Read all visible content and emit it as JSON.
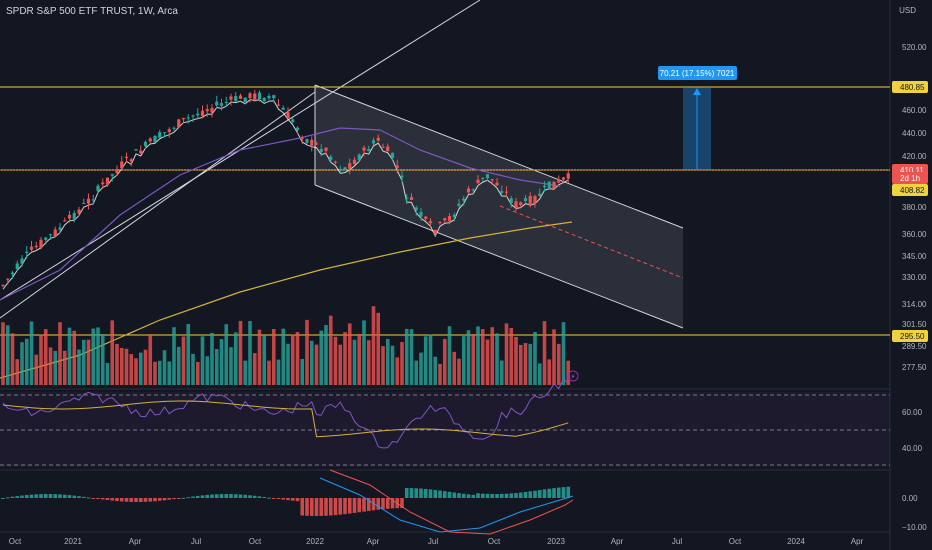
{
  "header": {
    "title": "SPDR S&P 500 ETF TRUST, 1W, Arca",
    "currency": "USD"
  },
  "colors": {
    "up": "#26a69a",
    "down": "#ef5350",
    "ma_short": "#ffffff",
    "ma_mid": "#7e57c2",
    "ma_long": "#d4b13a",
    "level": "#f0d23c",
    "channel_fill": "#6b6e78",
    "measure": "#2196f3"
  },
  "price_axis": {
    "ticks": [
      "520.00",
      "480.00",
      "460.00",
      "440.00",
      "420.00",
      "380.00",
      "360.00",
      "345.00",
      "330.00",
      "314.00",
      "301.50",
      "289.50",
      "277.50"
    ],
    "labels": [
      {
        "text": "480.85",
        "style": "yellow"
      },
      {
        "text": "410.11",
        "style": "red"
      },
      {
        "text": "2d 1h",
        "style": "red"
      },
      {
        "text": "408.82",
        "style": "yellow"
      },
      {
        "text": "295.50",
        "style": "yellow"
      }
    ]
  },
  "measure_label": "70.21 (17.15%) 7021",
  "rsi_axis": [
    "60.00",
    "40.00"
  ],
  "macd_axis": [
    "0.00",
    "−10.00"
  ],
  "time_axis": [
    "Oct",
    "2021",
    "Apr",
    "Jul",
    "Oct",
    "2022",
    "Apr",
    "Jul",
    "Oct",
    "2023",
    "Apr",
    "Jul",
    "Oct",
    "2024",
    "Apr"
  ]
}
